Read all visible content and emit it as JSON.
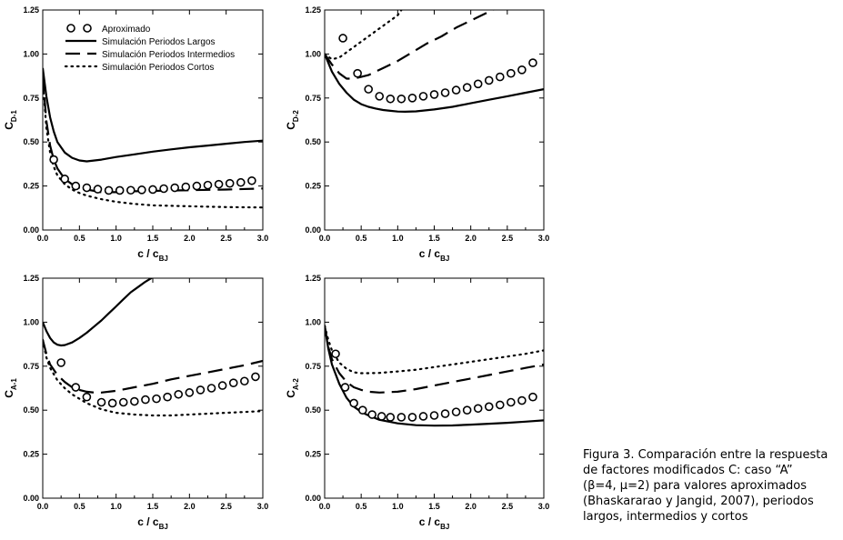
{
  "caption": {
    "lines": [
      "Figura 3. Comparación entre la respuesta",
      "de factores modificados C: caso “A”",
      "(β=4, μ=2) para valores aproximados",
      "(Bhaskararao y Jangid, 2007), periodos",
      "largos, intermedios y cortos"
    ]
  },
  "legend": {
    "entries": [
      {
        "label": "Aproximado",
        "style": "circle"
      },
      {
        "label": "Simulación Periodos Largos",
        "style": "solid"
      },
      {
        "label": "Simulación Periodos Intermedios",
        "style": "dash"
      },
      {
        "label": "Simulación Periodos Cortos",
        "style": "dot"
      }
    ]
  },
  "colors": {
    "ink": "#000000",
    "background": "#ffffff"
  },
  "chart_data": [
    {
      "type": "line",
      "ylabel_main": "C",
      "ylabel_sub": "D-1",
      "xlabel_main": "c / c",
      "xlabel_sub": "BJ",
      "xlim": [
        0.0,
        3.0
      ],
      "ylim": [
        0.0,
        1.25
      ],
      "xticks": [
        "0.0",
        "0.5",
        "1.0",
        "1.5",
        "2.0",
        "2.5",
        "3.0"
      ],
      "yticks": [
        "0.00",
        "0.25",
        "0.50",
        "0.75",
        "1.00",
        "1.25"
      ],
      "series": [
        {
          "style": "solid",
          "x": [
            0.0,
            0.05,
            0.1,
            0.15,
            0.2,
            0.3,
            0.4,
            0.5,
            0.6,
            0.8,
            1.0,
            1.25,
            1.5,
            1.75,
            2.0,
            2.25,
            2.5,
            2.75,
            3.0
          ],
          "y": [
            0.92,
            0.76,
            0.64,
            0.56,
            0.5,
            0.44,
            0.41,
            0.395,
            0.39,
            0.4,
            0.415,
            0.43,
            0.445,
            0.458,
            0.47,
            0.48,
            0.49,
            0.5,
            0.508
          ]
        },
        {
          "style": "dash",
          "x": [
            0.0,
            0.05,
            0.1,
            0.15,
            0.2,
            0.3,
            0.4,
            0.5,
            0.6,
            0.8,
            1.0,
            1.25,
            1.5,
            2.0,
            2.5,
            3.0
          ],
          "y": [
            0.87,
            0.62,
            0.48,
            0.4,
            0.35,
            0.29,
            0.26,
            0.24,
            0.23,
            0.215,
            0.215,
            0.22,
            0.222,
            0.226,
            0.23,
            0.236
          ]
        },
        {
          "style": "dot",
          "x": [
            0.0,
            0.05,
            0.1,
            0.15,
            0.2,
            0.3,
            0.4,
            0.5,
            0.6,
            0.8,
            1.0,
            1.25,
            1.5,
            2.0,
            2.5,
            3.0
          ],
          "y": [
            0.85,
            0.58,
            0.44,
            0.36,
            0.31,
            0.26,
            0.23,
            0.21,
            0.195,
            0.175,
            0.16,
            0.148,
            0.14,
            0.135,
            0.13,
            0.128
          ]
        },
        {
          "style": "circle",
          "x": [
            0.15,
            0.3,
            0.45,
            0.6,
            0.75,
            0.9,
            1.05,
            1.2,
            1.35,
            1.5,
            1.65,
            1.8,
            1.95,
            2.1,
            2.25,
            2.4,
            2.55,
            2.7,
            2.85
          ],
          "y": [
            0.4,
            0.29,
            0.25,
            0.24,
            0.232,
            0.225,
            0.225,
            0.226,
            0.228,
            0.23,
            0.235,
            0.24,
            0.245,
            0.25,
            0.255,
            0.26,
            0.265,
            0.27,
            0.28
          ]
        }
      ]
    },
    {
      "type": "line",
      "ylabel_main": "C",
      "ylabel_sub": "D-2",
      "xlabel_main": "c / c",
      "xlabel_sub": "BJ",
      "xlim": [
        0.0,
        3.0
      ],
      "ylim": [
        0.0,
        1.25
      ],
      "xticks": [
        "0.0",
        "0.5",
        "1.0",
        "1.5",
        "2.0",
        "2.5",
        "3.0"
      ],
      "yticks": [
        "0.00",
        "0.25",
        "0.50",
        "0.75",
        "1.00",
        "1.25"
      ],
      "series": [
        {
          "style": "solid",
          "x": [
            0.0,
            0.05,
            0.1,
            0.2,
            0.3,
            0.4,
            0.5,
            0.6,
            0.7,
            0.8,
            0.9,
            1.0,
            1.1,
            1.25,
            1.5,
            1.75,
            2.0,
            2.25,
            2.5,
            2.75,
            3.0
          ],
          "y": [
            1.0,
            0.95,
            0.9,
            0.83,
            0.78,
            0.74,
            0.715,
            0.7,
            0.69,
            0.682,
            0.677,
            0.673,
            0.672,
            0.674,
            0.685,
            0.7,
            0.72,
            0.74,
            0.76,
            0.78,
            0.8
          ]
        },
        {
          "style": "dash",
          "x": [
            0.0,
            0.1,
            0.2,
            0.3,
            0.4,
            0.5,
            0.6,
            0.8,
            1.0,
            1.2,
            1.4,
            1.6,
            1.8,
            2.0,
            2.2,
            2.35
          ],
          "y": [
            1.0,
            0.94,
            0.89,
            0.86,
            0.86,
            0.87,
            0.88,
            0.92,
            0.96,
            1.01,
            1.06,
            1.1,
            1.15,
            1.19,
            1.23,
            1.26
          ]
        },
        {
          "style": "dot",
          "x": [
            0.0,
            0.1,
            0.2,
            0.3,
            0.4,
            0.5,
            0.6,
            0.7,
            0.8,
            0.9,
            1.0,
            1.05
          ],
          "y": [
            1.0,
            0.97,
            0.98,
            1.01,
            1.04,
            1.07,
            1.1,
            1.13,
            1.16,
            1.19,
            1.22,
            1.25
          ]
        },
        {
          "style": "circle",
          "x": [
            0.25,
            0.45,
            0.6,
            0.75,
            0.9,
            1.05,
            1.2,
            1.35,
            1.5,
            1.65,
            1.8,
            1.95,
            2.1,
            2.25,
            2.4,
            2.55,
            2.7,
            2.85
          ],
          "y": [
            1.09,
            0.89,
            0.8,
            0.76,
            0.745,
            0.745,
            0.75,
            0.76,
            0.77,
            0.78,
            0.795,
            0.81,
            0.83,
            0.85,
            0.87,
            0.89,
            0.91,
            0.95
          ]
        }
      ]
    },
    {
      "type": "line",
      "ylabel_main": "C",
      "ylabel_sub": "A-1",
      "xlabel_main": "c / c",
      "xlabel_sub": "BJ",
      "xlim": [
        0.0,
        3.0
      ],
      "ylim": [
        0.0,
        1.25
      ],
      "xticks": [
        "0.0",
        "0.5",
        "1.0",
        "1.5",
        "2.0",
        "2.5",
        "3.0"
      ],
      "yticks": [
        "0.00",
        "0.25",
        "0.50",
        "0.75",
        "1.00",
        "1.25"
      ],
      "series": [
        {
          "style": "solid",
          "x": [
            0.0,
            0.05,
            0.1,
            0.15,
            0.2,
            0.25,
            0.3,
            0.4,
            0.5,
            0.6,
            0.7,
            0.8,
            0.9,
            1.0,
            1.1,
            1.2,
            1.3,
            1.4,
            1.5
          ],
          "y": [
            1.0,
            0.95,
            0.91,
            0.885,
            0.872,
            0.868,
            0.87,
            0.885,
            0.91,
            0.94,
            0.975,
            1.01,
            1.05,
            1.09,
            1.13,
            1.17,
            1.2,
            1.23,
            1.255
          ]
        },
        {
          "style": "dash",
          "x": [
            0.0,
            0.05,
            0.1,
            0.2,
            0.3,
            0.4,
            0.5,
            0.6,
            0.7,
            0.8,
            1.0,
            1.25,
            1.5,
            1.75,
            2.0,
            2.25,
            2.5,
            2.75,
            3.0
          ],
          "y": [
            0.9,
            0.82,
            0.76,
            0.7,
            0.66,
            0.63,
            0.615,
            0.605,
            0.6,
            0.6,
            0.61,
            0.63,
            0.65,
            0.675,
            0.695,
            0.715,
            0.735,
            0.755,
            0.78
          ]
        },
        {
          "style": "dot",
          "x": [
            0.0,
            0.05,
            0.1,
            0.2,
            0.3,
            0.4,
            0.5,
            0.6,
            0.8,
            1.0,
            1.25,
            1.5,
            1.75,
            2.0,
            2.5,
            3.0
          ],
          "y": [
            0.9,
            0.8,
            0.74,
            0.67,
            0.625,
            0.59,
            0.565,
            0.54,
            0.505,
            0.485,
            0.475,
            0.47,
            0.47,
            0.475,
            0.485,
            0.495
          ]
        },
        {
          "style": "circle",
          "x": [
            0.25,
            0.45,
            0.6,
            0.8,
            0.95,
            1.1,
            1.25,
            1.4,
            1.55,
            1.7,
            1.85,
            2.0,
            2.15,
            2.3,
            2.45,
            2.6,
            2.75,
            2.9
          ],
          "y": [
            0.77,
            0.63,
            0.575,
            0.545,
            0.54,
            0.545,
            0.55,
            0.56,
            0.565,
            0.575,
            0.59,
            0.6,
            0.615,
            0.625,
            0.64,
            0.655,
            0.665,
            0.69
          ]
        }
      ]
    },
    {
      "type": "line",
      "ylabel_main": "C",
      "ylabel_sub": "A-2",
      "xlabel_main": "c / c",
      "xlabel_sub": "BJ",
      "xlim": [
        0.0,
        3.0
      ],
      "ylim": [
        0.0,
        1.25
      ],
      "xticks": [
        "0.0",
        "0.5",
        "1.0",
        "1.5",
        "2.0",
        "2.5",
        "3.0"
      ],
      "yticks": [
        "0.00",
        "0.25",
        "0.50",
        "0.75",
        "1.00",
        "1.25"
      ],
      "series": [
        {
          "style": "solid",
          "x": [
            0.0,
            0.05,
            0.1,
            0.2,
            0.3,
            0.4,
            0.5,
            0.6,
            0.75,
            1.0,
            1.25,
            1.5,
            1.75,
            2.0,
            2.25,
            2.5,
            2.75,
            3.0
          ],
          "y": [
            0.98,
            0.85,
            0.76,
            0.65,
            0.57,
            0.52,
            0.49,
            0.47,
            0.445,
            0.425,
            0.415,
            0.412,
            0.413,
            0.418,
            0.423,
            0.428,
            0.435,
            0.442
          ]
        },
        {
          "style": "dash",
          "x": [
            0.0,
            0.05,
            0.1,
            0.2,
            0.3,
            0.4,
            0.5,
            0.6,
            0.75,
            1.0,
            1.25,
            1.5,
            1.75,
            2.0,
            2.25,
            2.5,
            2.75,
            3.0
          ],
          "y": [
            0.98,
            0.86,
            0.79,
            0.71,
            0.66,
            0.63,
            0.615,
            0.605,
            0.6,
            0.605,
            0.62,
            0.64,
            0.66,
            0.68,
            0.7,
            0.72,
            0.74,
            0.76
          ]
        },
        {
          "style": "dot",
          "x": [
            0.0,
            0.05,
            0.1,
            0.2,
            0.3,
            0.4,
            0.5,
            0.6,
            0.75,
            1.0,
            1.25,
            1.5,
            1.75,
            2.0,
            2.25,
            2.5,
            2.75,
            3.0
          ],
          "y": [
            0.98,
            0.9,
            0.84,
            0.77,
            0.735,
            0.715,
            0.71,
            0.71,
            0.712,
            0.72,
            0.73,
            0.745,
            0.76,
            0.775,
            0.79,
            0.805,
            0.82,
            0.84
          ]
        },
        {
          "style": "circle",
          "x": [
            0.15,
            0.28,
            0.4,
            0.52,
            0.65,
            0.78,
            0.9,
            1.05,
            1.2,
            1.35,
            1.5,
            1.65,
            1.8,
            1.95,
            2.1,
            2.25,
            2.4,
            2.55,
            2.7,
            2.85
          ],
          "y": [
            0.82,
            0.63,
            0.54,
            0.5,
            0.475,
            0.465,
            0.46,
            0.46,
            0.46,
            0.465,
            0.47,
            0.48,
            0.49,
            0.5,
            0.51,
            0.52,
            0.53,
            0.545,
            0.555,
            0.575
          ]
        }
      ]
    }
  ]
}
